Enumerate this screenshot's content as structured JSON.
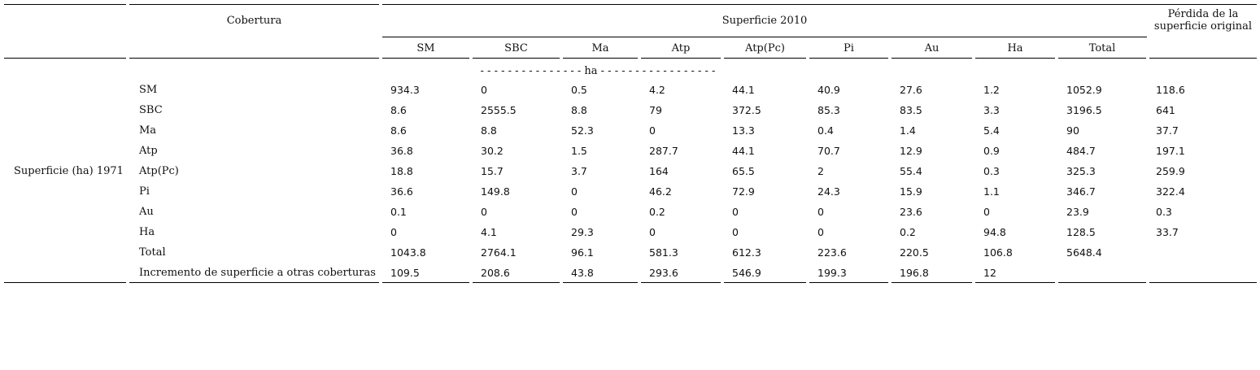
{
  "table": {
    "header": {
      "cobertura": "Cobertura",
      "superficie_2010": "Superficie 2010",
      "perdida_line1": "Pérdida de la",
      "perdida_line2": "superficie original",
      "columns": [
        "SM",
        "SBC",
        "Ma",
        "Atp",
        "Atp(Pc)",
        "Pi",
        "Au",
        "Ha",
        "Total"
      ],
      "unit_row": "- - - - - - - - - - - - - - - ha - - - - - - - - - - - - - - - - -"
    },
    "row_group_label": "Superficie (ha) 1971",
    "rows": [
      {
        "label": "SM",
        "values": [
          "934.3",
          "0",
          "0.5",
          "4.2",
          "44.1",
          "40.9",
          "27.6",
          "1.2",
          "1052.9",
          "118.6"
        ]
      },
      {
        "label": "SBC",
        "values": [
          "8.6",
          "2555.5",
          "8.8",
          "79",
          "372.5",
          "85.3",
          "83.5",
          "3.3",
          "3196.5",
          "641"
        ]
      },
      {
        "label": "Ma",
        "values": [
          "8.6",
          "8.8",
          "52.3",
          "0",
          "13.3",
          "0.4",
          "1.4",
          "5.4",
          "90",
          "37.7"
        ]
      },
      {
        "label": "Atp",
        "values": [
          "36.8",
          "30.2",
          "1.5",
          "287.7",
          "44.1",
          "70.7",
          "12.9",
          "0.9",
          "484.7",
          "197.1"
        ]
      },
      {
        "label": "Atp(Pc)",
        "values": [
          "18.8",
          "15.7",
          "3.7",
          "164",
          "65.5",
          "2",
          "55.4",
          "0.3",
          "325.3",
          "259.9"
        ]
      },
      {
        "label": "Pi",
        "values": [
          "36.6",
          "149.8",
          "0",
          "46.2",
          "72.9",
          "24.3",
          "15.9",
          "1.1",
          "346.7",
          "322.4"
        ]
      },
      {
        "label": "Au",
        "values": [
          "0.1",
          "0",
          "0",
          "0.2",
          "0",
          "0",
          "23.6",
          "0",
          "23.9",
          "0.3"
        ]
      },
      {
        "label": "Ha",
        "values": [
          "0",
          "4.1",
          "29.3",
          "0",
          "0",
          "0",
          "0.2",
          "94.8",
          "128.5",
          "33.7"
        ]
      },
      {
        "label": "Total",
        "values": [
          "1043.8",
          "2764.1",
          "96.1",
          "581.3",
          "612.3",
          "223.6",
          "220.5",
          "106.8",
          "5648.4",
          ""
        ]
      },
      {
        "label": "Incremento de superficie a otras coberturas",
        "values": [
          "109.5",
          "208.6",
          "43.8",
          "293.6",
          "546.9",
          "199.3",
          "196.8",
          "12",
          "",
          ""
        ]
      }
    ]
  }
}
